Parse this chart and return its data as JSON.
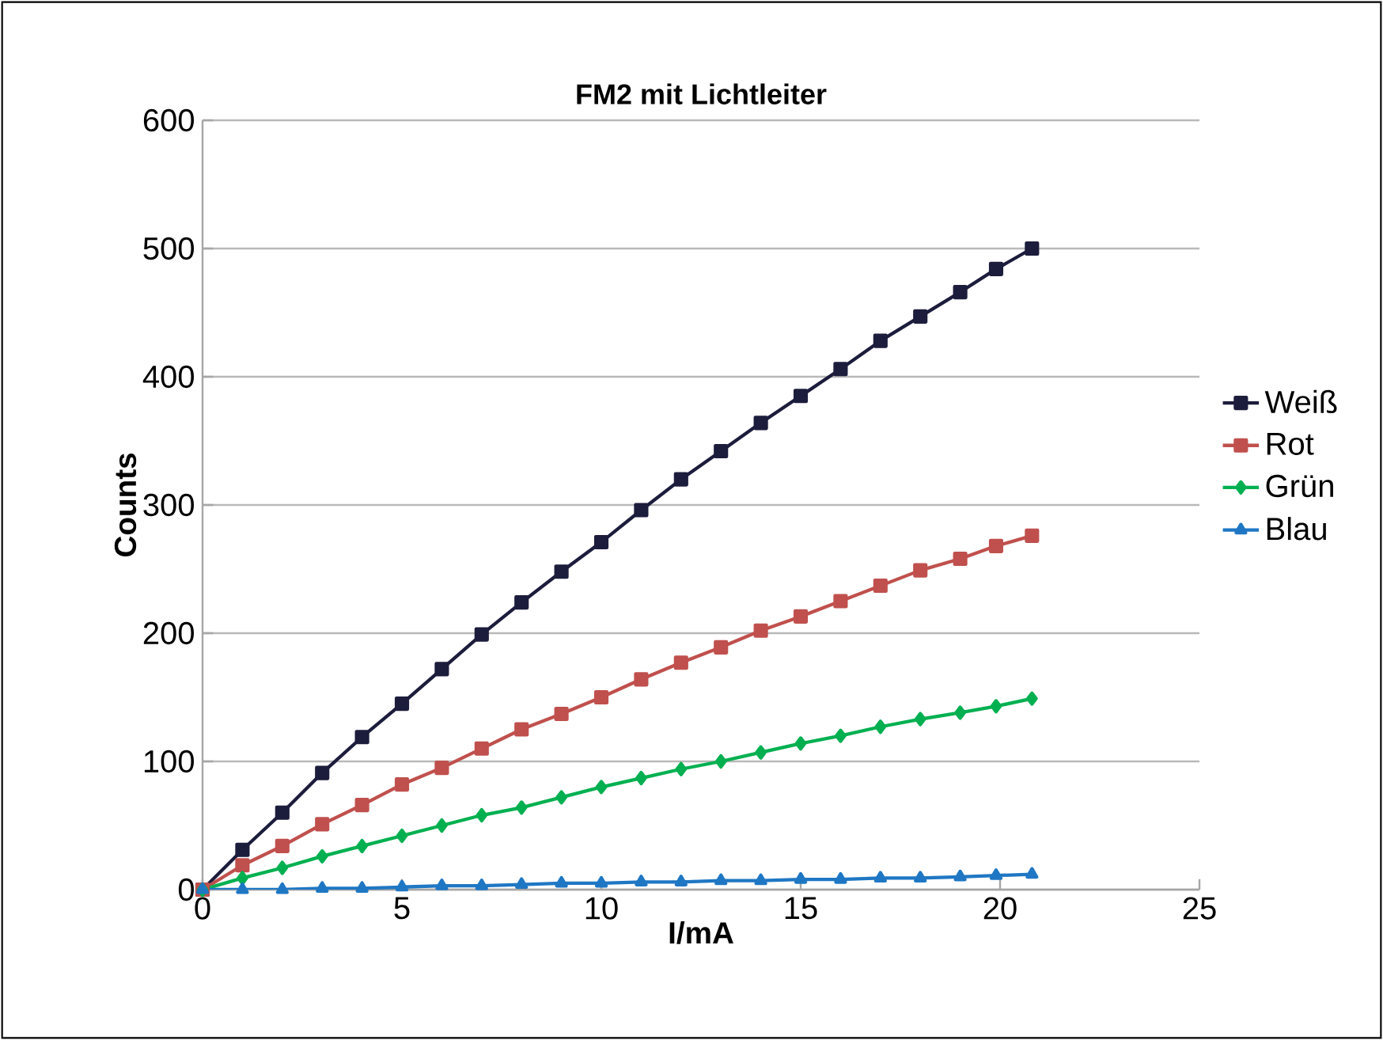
{
  "chart_data": {
    "type": "line",
    "title": "FM2 mit Lichtleiter",
    "xlabel": "I/mA",
    "ylabel": "Counts",
    "x": [
      0,
      1,
      2,
      3,
      4,
      5,
      6,
      7,
      8,
      9,
      10,
      11,
      12,
      13,
      14,
      15,
      16,
      17,
      18,
      19,
      19.9,
      20.8
    ],
    "series": [
      {
        "name": "Weiß",
        "color": "#1c1c3c",
        "marker": "square",
        "values": [
          0,
          31,
          60,
          91,
          119,
          145,
          172,
          199,
          224,
          248,
          271,
          296,
          320,
          342,
          364,
          385,
          406,
          428,
          447,
          466,
          484,
          500
        ]
      },
      {
        "name": "Rot",
        "color": "#c0504d",
        "marker": "square",
        "values": [
          0,
          19,
          34,
          51,
          66,
          82,
          95,
          110,
          125,
          137,
          150,
          164,
          177,
          189,
          202,
          213,
          225,
          237,
          249,
          258,
          268,
          276
        ]
      },
      {
        "name": "Grün",
        "color": "#00b050",
        "marker": "diamond",
        "values": [
          0,
          9,
          17,
          26,
          34,
          42,
          50,
          58,
          64,
          72,
          80,
          87,
          94,
          100,
          107,
          114,
          120,
          127,
          133,
          138,
          143,
          149
        ]
      },
      {
        "name": "Blau",
        "color": "#1f77c4",
        "marker": "triangle",
        "values": [
          0,
          0,
          0,
          1,
          1,
          2,
          3,
          3,
          4,
          5,
          5,
          6,
          6,
          7,
          7,
          8,
          8,
          9,
          9,
          10,
          11,
          12
        ]
      }
    ],
    "xlim": [
      0,
      25
    ],
    "xticks": [
      0,
      5,
      10,
      15,
      20,
      25
    ],
    "ylim": [
      0,
      600
    ],
    "yticks": [
      0,
      100,
      200,
      300,
      400,
      500,
      600
    ],
    "grid": "y",
    "legend": "right",
    "line_style": "solid"
  }
}
